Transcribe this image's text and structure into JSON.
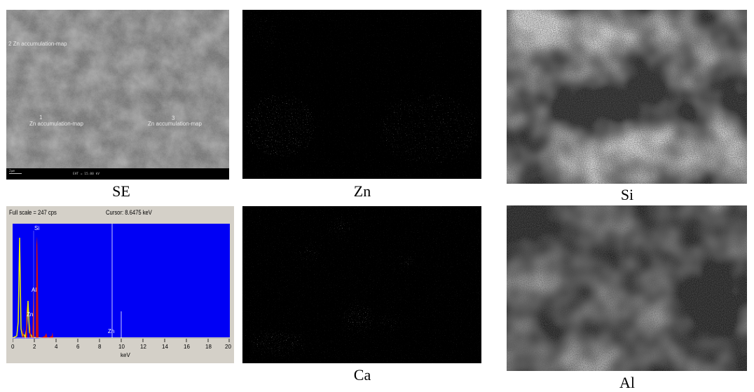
{
  "captions": {
    "se": "SE",
    "zn": "Zn",
    "si": "Si",
    "ca": "Ca",
    "al": "Al"
  },
  "se_image": {
    "labels": [
      "2 Zn accumulation-map",
      "1",
      "Zn accumulation-map",
      "3",
      "Zn accumulation-map"
    ],
    "scale": "2µm",
    "eht": "EHT = 15.00 kV"
  },
  "eds": {
    "full_scale": "Full scale = 247  cps",
    "cursor": "Cursor:  8.6475 keV",
    "x_unit": "keV",
    "x_ticks": [
      "0",
      "2",
      "4",
      "6",
      "8",
      "10",
      "12",
      "14",
      "16",
      "18",
      "20"
    ],
    "peaks": [
      "Si",
      "Al",
      "Zn",
      "Zn"
    ]
  },
  "colors": {
    "plot_bg": "#0000f5",
    "peak_red": "#d01010",
    "peak_yellow": "#f0f000"
  }
}
